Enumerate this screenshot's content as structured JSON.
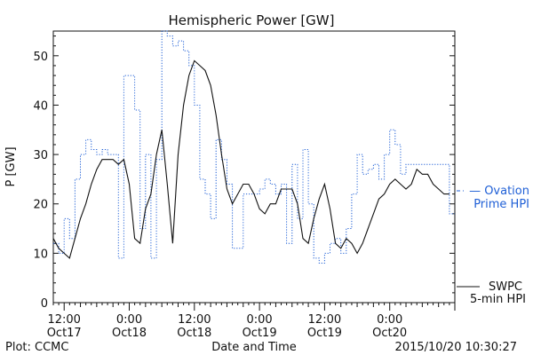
{
  "chart_data": {
    "type": "line",
    "title": "Hemispheric Power [GW]",
    "xlabel": "Date and Time",
    "ylabel": "P [GW]",
    "ylim": [
      0,
      55
    ],
    "xlim_hours": [
      -2,
      72
    ],
    "grid": false,
    "y_ticks": [
      0,
      10,
      20,
      30,
      40,
      50
    ],
    "x_ticks": [
      {
        "hour": 0,
        "time": "12:00",
        "date": "Oct17"
      },
      {
        "hour": 12,
        "time": "0:00",
        "date": "Oct18"
      },
      {
        "hour": 24,
        "time": "12:00",
        "date": "Oct18"
      },
      {
        "hour": 36,
        "time": "0:00",
        "date": "Oct19"
      },
      {
        "hour": 48,
        "time": "12:00",
        "date": "Oct19"
      },
      {
        "hour": 60,
        "time": "0:00",
        "date": "Oct20"
      }
    ],
    "x_unit": "hours from Oct17 12:00",
    "series": [
      {
        "name": "Ovation Prime HPI",
        "legend_line1": "Ovation",
        "legend_line2": "Prime HPI",
        "color": "#1f5fd6",
        "style": "dotted-step",
        "x": [
          -2,
          -1,
          0,
          1,
          2,
          3,
          4,
          5,
          6,
          7,
          8,
          9,
          10,
          11,
          12,
          13,
          14,
          15,
          16,
          17,
          18,
          19,
          20,
          21,
          22,
          23,
          24,
          25,
          26,
          27,
          28,
          29,
          30,
          31,
          32,
          33,
          34,
          35,
          36,
          37,
          38,
          39,
          40,
          41,
          42,
          43,
          44,
          45,
          46,
          47,
          48,
          49,
          50,
          51,
          52,
          53,
          54,
          55,
          56,
          57,
          58,
          59,
          60,
          61,
          62,
          63,
          64,
          65,
          66,
          67,
          68,
          69,
          70,
          71
        ],
        "y": [
          12,
          10,
          17,
          13,
          25,
          30,
          33,
          31,
          30,
          31,
          30,
          30,
          9,
          46,
          46,
          39,
          15,
          30,
          9,
          29,
          55,
          54,
          52,
          53,
          51,
          48,
          40,
          25,
          22,
          17,
          33,
          29,
          24,
          11,
          11,
          22,
          22,
          22,
          23,
          25,
          24,
          22,
          24,
          12,
          28,
          17,
          31,
          20,
          9,
          8,
          10,
          12,
          13,
          10,
          15,
          22,
          30,
          26,
          27,
          28,
          25,
          30,
          35,
          32,
          26,
          28,
          28,
          28,
          28,
          28,
          28,
          28,
          28,
          18
        ]
      },
      {
        "name": "SWPC 5-min HPI",
        "legend_line1": "SWPC",
        "legend_line2": "5-min HPI",
        "color": "#111111",
        "style": "solid",
        "x": [
          -2,
          -1,
          0,
          1,
          2,
          3,
          4,
          5,
          6,
          7,
          8,
          9,
          10,
          11,
          12,
          13,
          14,
          15,
          16,
          17,
          18,
          19,
          20,
          21,
          22,
          23,
          24,
          25,
          26,
          27,
          28,
          29,
          30,
          31,
          32,
          33,
          34,
          35,
          36,
          37,
          38,
          39,
          40,
          41,
          42,
          43,
          44,
          45,
          46,
          47,
          48,
          49,
          50,
          51,
          52,
          53,
          54,
          55,
          56,
          57,
          58,
          59,
          60,
          61,
          62,
          63,
          64,
          65,
          66,
          67,
          68,
          69,
          70,
          71
        ],
        "y": [
          13,
          11,
          10,
          9,
          13,
          17,
          20,
          24,
          27,
          29,
          29,
          29,
          28,
          29,
          24,
          13,
          12,
          19,
          22,
          30,
          35,
          24,
          12,
          30,
          40,
          46,
          49,
          48,
          47,
          44,
          38,
          30,
          23,
          20,
          22,
          24,
          24,
          22,
          19,
          18,
          20,
          20,
          23,
          23,
          23,
          20,
          13,
          12,
          17,
          21,
          24,
          19,
          12,
          11,
          13,
          12,
          10,
          12,
          15,
          18,
          21,
          22,
          24,
          25,
          24,
          23,
          24,
          27,
          26,
          26,
          24,
          23,
          22,
          22
        ]
      }
    ]
  },
  "footer": {
    "plot_credit": "Plot: CCMC",
    "timestamp": "2015/10/20 10:30:27"
  }
}
